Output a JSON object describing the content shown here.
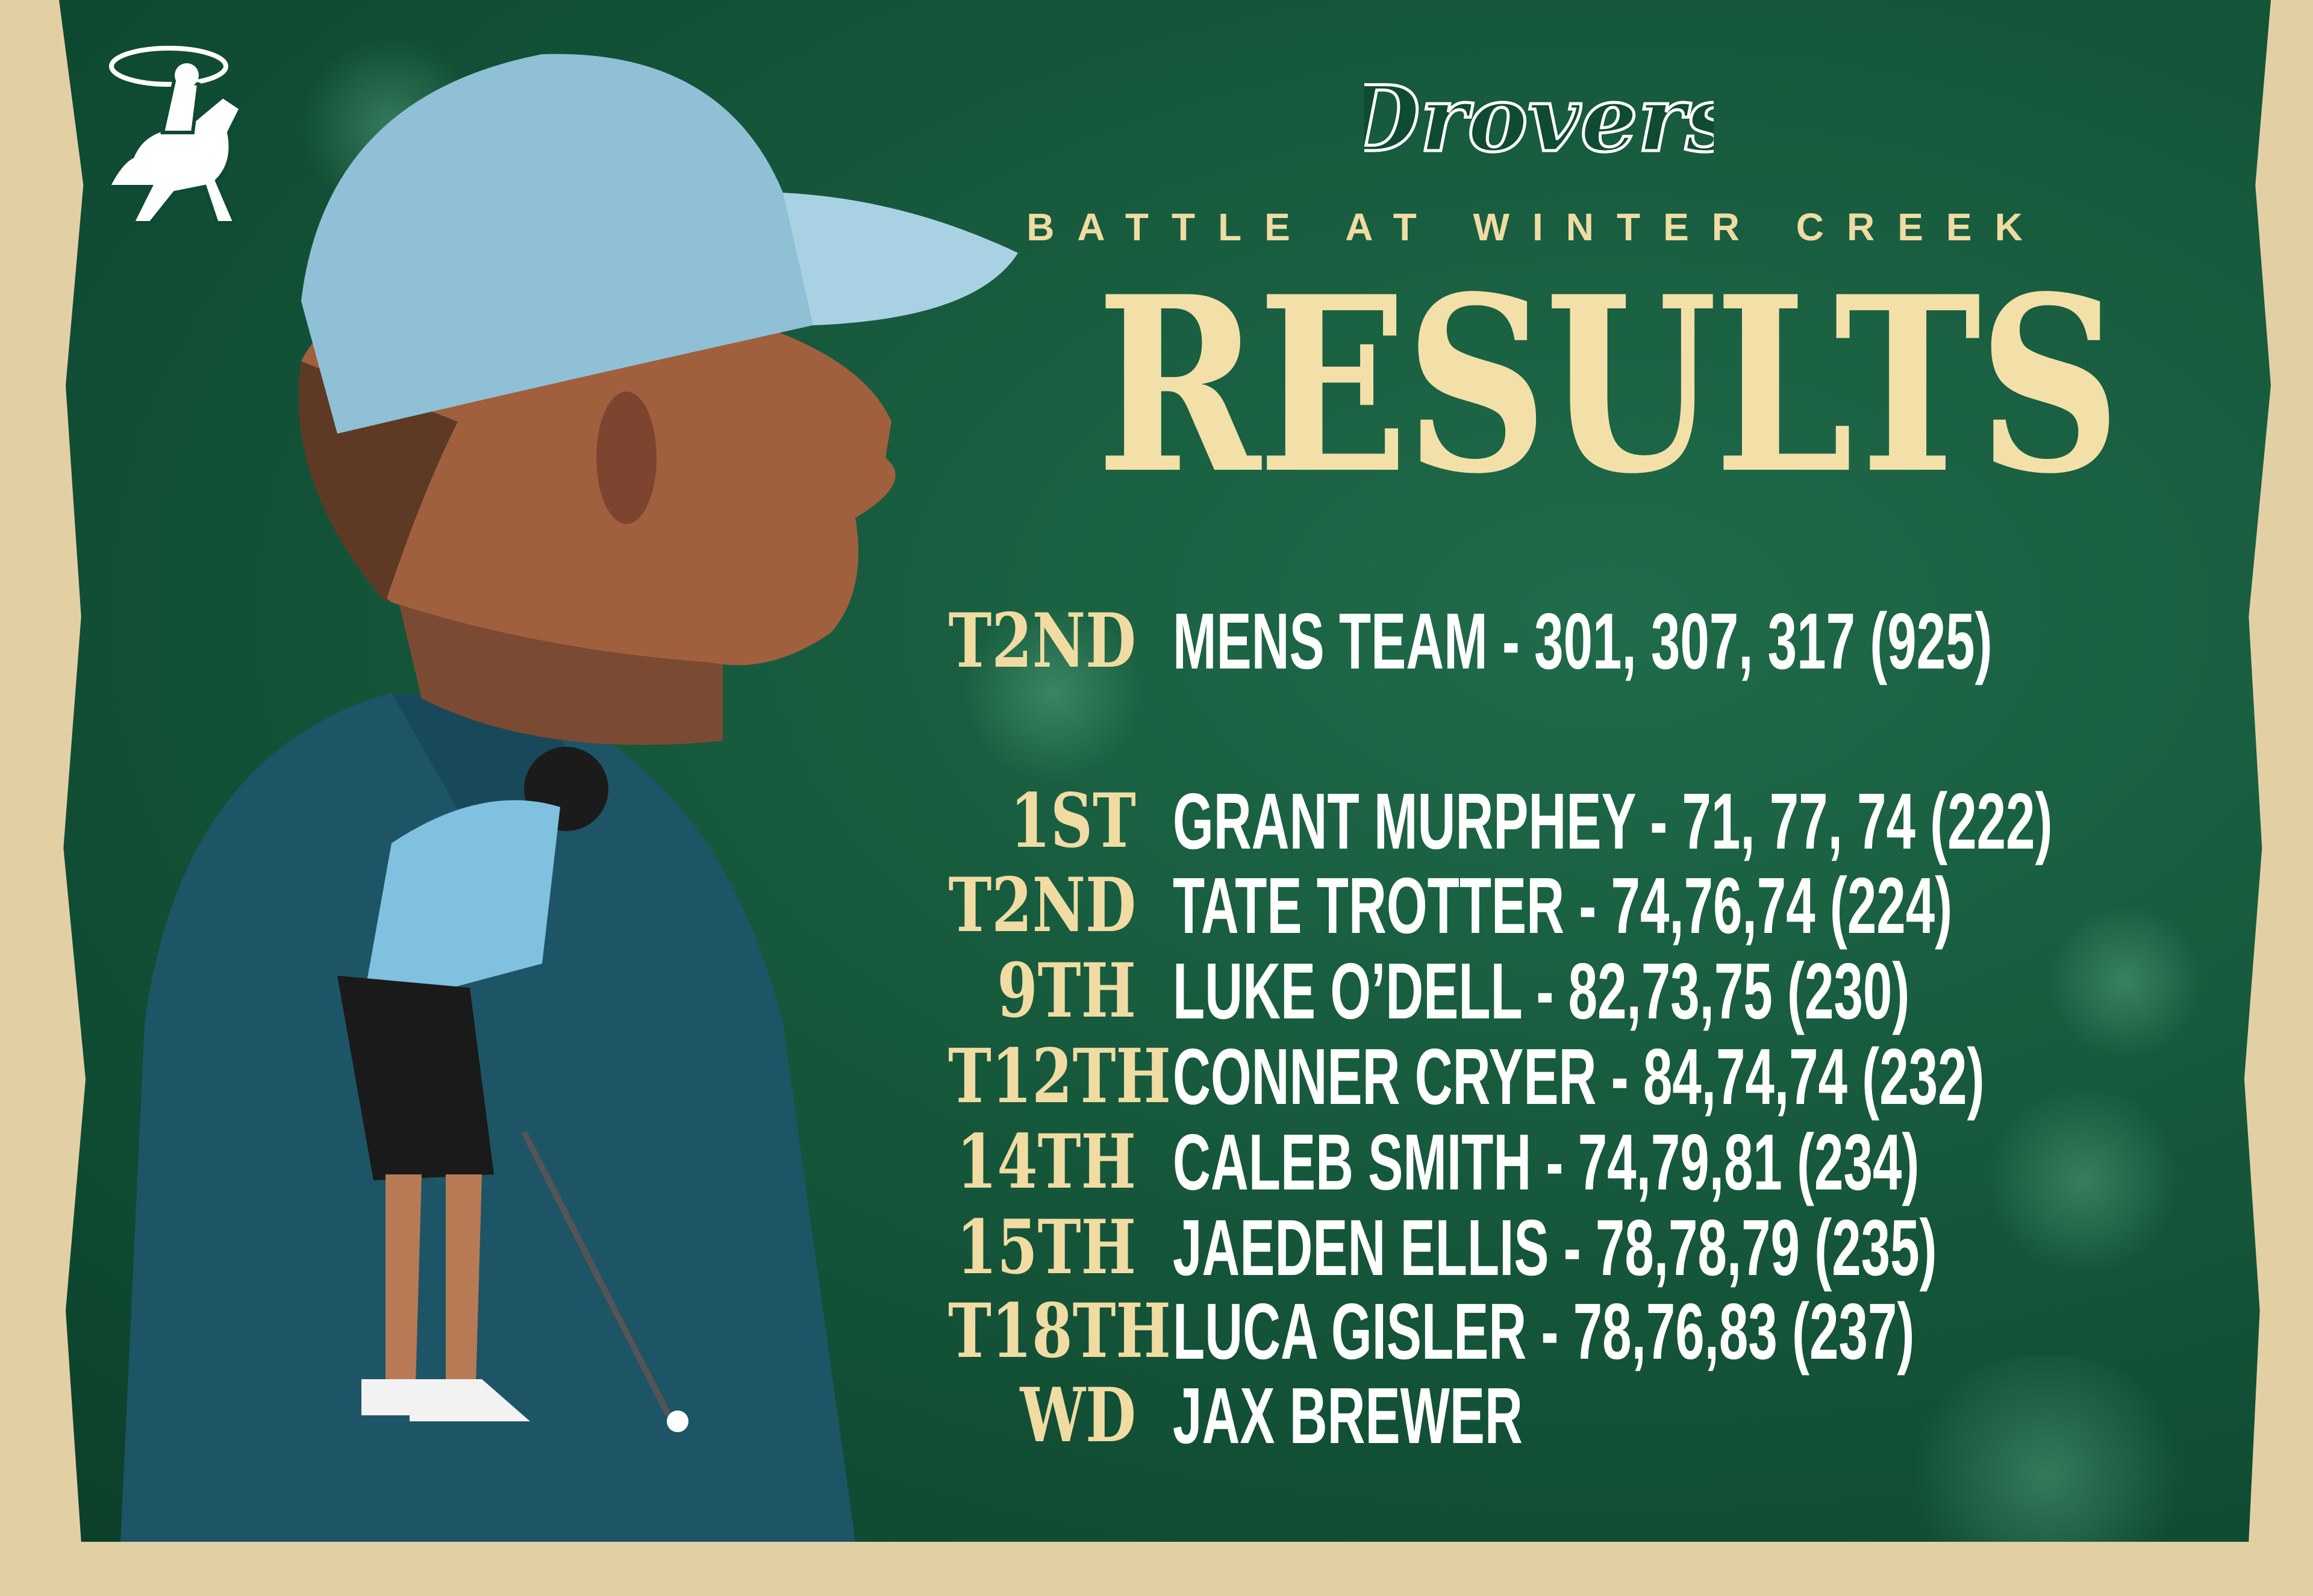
{
  "brand": {
    "wordmark": "Drovers",
    "logo_icon": "cowboy-on-horse-icon"
  },
  "header": {
    "subtitle": "BATTLE AT WINTER CREEK",
    "title": "RESULTS"
  },
  "team_result": {
    "rank": "T2ND",
    "text": "MENS TEAM - 301, 307, 317 (925)"
  },
  "players": [
    {
      "rank": "1ST",
      "text": "GRANT MURPHEY -  71, 77, 74 (222)"
    },
    {
      "rank": "T2ND",
      "text": "TATE TROTTER - 74,76,74 (224)"
    },
    {
      "rank": "9TH",
      "text": "LUKE O’DELL - 82,73,75 (230)"
    },
    {
      "rank": "T12TH",
      "text": "CONNER CRYER - 84,74,74 (232)"
    },
    {
      "rank": "14TH",
      "text": "CALEB SMITH - 74,79,81 (234)"
    },
    {
      "rank": "15TH",
      "text": "JAEDEN ELLIS - 78,78,79 (235)"
    },
    {
      "rank": "T18TH",
      "text": "LUCA GISLER - 78,76,83 (237)"
    },
    {
      "rank": "WD",
      "text": "JAX BREWER"
    }
  ],
  "colors": {
    "background_green": "#175a3d",
    "accent_cream": "#f0dca3",
    "border_beige": "#e3cfa4",
    "text_white": "#ffffff"
  }
}
